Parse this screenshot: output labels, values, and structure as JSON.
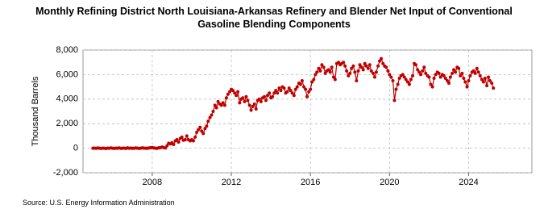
{
  "chart_data": {
    "type": "line",
    "title": "Monthly Refining District North Louisiana-Arkansas Refinery and Blender Net Input of Conventional Gasoline Blending Components",
    "y_label": "Thousand Barrels",
    "source": "Source: U.S. Energy Information Administration",
    "xlim": [
      2004.5,
      2027.2
    ],
    "xticks": [
      2008,
      2012,
      2016,
      2020,
      2024
    ],
    "ylim": [
      -2000,
      8000
    ],
    "yticks": [
      {
        "value": -2000,
        "label": "-2,000"
      },
      0,
      {
        "value": 2000,
        "label": "2,000"
      },
      {
        "value": 4000,
        "label": "4,000"
      },
      {
        "value": 6000,
        "label": "6,000"
      },
      {
        "value": 8000,
        "label": "8,000"
      }
    ],
    "grid": true,
    "x": [
      2005.0,
      2005.08,
      2005.17,
      2005.25,
      2005.33,
      2005.42,
      2005.5,
      2005.58,
      2005.67,
      2005.75,
      2005.83,
      2005.92,
      2006.0,
      2006.08,
      2006.17,
      2006.25,
      2006.33,
      2006.42,
      2006.5,
      2006.58,
      2006.67,
      2006.75,
      2006.83,
      2006.92,
      2007.0,
      2007.08,
      2007.17,
      2007.25,
      2007.33,
      2007.42,
      2007.5,
      2007.58,
      2007.67,
      2007.75,
      2007.83,
      2007.92,
      2008.0,
      2008.08,
      2008.17,
      2008.25,
      2008.33,
      2008.42,
      2008.5,
      2008.58,
      2008.67,
      2008.75,
      2008.83,
      2008.92,
      2009.0,
      2009.08,
      2009.17,
      2009.25,
      2009.33,
      2009.42,
      2009.5,
      2009.58,
      2009.67,
      2009.75,
      2009.83,
      2009.92,
      2010.0,
      2010.08,
      2010.17,
      2010.25,
      2010.33,
      2010.42,
      2010.5,
      2010.58,
      2010.67,
      2010.75,
      2010.83,
      2010.92,
      2011.0,
      2011.08,
      2011.17,
      2011.25,
      2011.33,
      2011.42,
      2011.5,
      2011.58,
      2011.67,
      2011.75,
      2011.83,
      2011.92,
      2012.0,
      2012.08,
      2012.17,
      2012.25,
      2012.33,
      2012.42,
      2012.5,
      2012.58,
      2012.67,
      2012.75,
      2012.83,
      2012.92,
      2013.0,
      2013.08,
      2013.17,
      2013.25,
      2013.33,
      2013.42,
      2013.5,
      2013.58,
      2013.67,
      2013.75,
      2013.83,
      2013.92,
      2014.0,
      2014.08,
      2014.17,
      2014.25,
      2014.33,
      2014.42,
      2014.5,
      2014.58,
      2014.67,
      2014.75,
      2014.83,
      2014.92,
      2015.0,
      2015.08,
      2015.17,
      2015.25,
      2015.33,
      2015.42,
      2015.5,
      2015.58,
      2015.67,
      2015.75,
      2015.83,
      2015.92,
      2016.0,
      2016.08,
      2016.17,
      2016.25,
      2016.33,
      2016.42,
      2016.5,
      2016.58,
      2016.67,
      2016.75,
      2016.83,
      2016.92,
      2017.0,
      2017.08,
      2017.17,
      2017.25,
      2017.33,
      2017.42,
      2017.5,
      2017.58,
      2017.67,
      2017.75,
      2017.83,
      2017.92,
      2018.0,
      2018.08,
      2018.17,
      2018.25,
      2018.33,
      2018.42,
      2018.5,
      2018.58,
      2018.67,
      2018.75,
      2018.83,
      2018.92,
      2019.0,
      2019.08,
      2019.17,
      2019.25,
      2019.33,
      2019.42,
      2019.5,
      2019.58,
      2019.67,
      2019.75,
      2019.83,
      2019.92,
      2020.0,
      2020.08,
      2020.17,
      2020.25,
      2020.33,
      2020.42,
      2020.5,
      2020.58,
      2020.67,
      2020.75,
      2020.83,
      2020.92,
      2021.0,
      2021.08,
      2021.17,
      2021.25,
      2021.33,
      2021.42,
      2021.5,
      2021.58,
      2021.67,
      2021.75,
      2021.83,
      2021.92,
      2022.0,
      2022.08,
      2022.17,
      2022.25,
      2022.33,
      2022.42,
      2022.5,
      2022.58,
      2022.67,
      2022.75,
      2022.83,
      2022.92,
      2023.0,
      2023.08,
      2023.17,
      2023.25,
      2023.33,
      2023.42,
      2023.5,
      2023.58,
      2023.67,
      2023.75,
      2023.83,
      2023.92,
      2024.0,
      2024.08,
      2024.17,
      2024.25,
      2024.33,
      2024.42,
      2024.5,
      2024.58,
      2024.67,
      2024.75,
      2024.83,
      2024.92,
      2025.0,
      2025.08,
      2025.17,
      2025.25
    ],
    "series": [
      {
        "color": "#c00000",
        "values": [
          0,
          10,
          -10,
          20,
          0,
          -20,
          10,
          0,
          -30,
          10,
          0,
          20,
          0,
          -20,
          10,
          0,
          20,
          -10,
          0,
          10,
          -20,
          30,
          0,
          10,
          -10,
          0,
          20,
          10,
          -20,
          0,
          30,
          10,
          0,
          -10,
          20,
          40,
          60,
          20,
          0,
          -10,
          30,
          50,
          100,
          50,
          20,
          200,
          400,
          350,
          450,
          300,
          600,
          700,
          500,
          800,
          900,
          650,
          700,
          1000,
          700,
          600,
          700,
          600,
          900,
          1300,
          1500,
          1700,
          1400,
          1200,
          1600,
          1800,
          2200,
          2500,
          2700,
          3000,
          3500,
          3300,
          3800,
          3600,
          3500,
          3700,
          3500,
          4100,
          4400,
          4600,
          4800,
          4700,
          4500,
          4300,
          4600,
          3700,
          4000,
          4100,
          3800,
          4200,
          3900,
          3500,
          3100,
          3400,
          3600,
          3200,
          3900,
          4000,
          3800,
          4100,
          4200,
          3900,
          4300,
          4500,
          4100,
          4200,
          4500,
          4700,
          4500,
          4900,
          4700,
          5000,
          4900,
          4500,
          4600,
          4900,
          4700,
          4500,
          4300,
          4800,
          5000,
          5300,
          5200,
          5500,
          5000,
          4800,
          4200,
          4600,
          4800,
          5400,
          5600,
          6000,
          6200,
          6500,
          6300,
          6800,
          6600,
          6100,
          6300,
          6400,
          6200,
          6600,
          5800,
          5600,
          6900,
          7000,
          6800,
          6900,
          7000,
          6700,
          6300,
          5900,
          6100,
          6500,
          6700,
          6200,
          5500,
          6300,
          6800,
          6600,
          6400,
          6900,
          6700,
          6500,
          6800,
          6300,
          6100,
          5800,
          6200,
          6700,
          7100,
          7300,
          6900,
          6700,
          6600,
          6300,
          6000,
          5800,
          5500,
          3900,
          4800,
          5200,
          5700,
          5900,
          6000,
          5800,
          5600,
          5400,
          5200,
          5600,
          5900,
          6900,
          6800,
          6400,
          6200,
          6000,
          6300,
          6600,
          6100,
          5900,
          5800,
          5200,
          5000,
          5700,
          6000,
          6200,
          6100,
          5800,
          6000,
          5900,
          5700,
          5500,
          5300,
          5800,
          6100,
          6400,
          6200,
          6600,
          6500,
          5900,
          6100,
          5700,
          5400,
          5000,
          5500,
          5900,
          6200,
          6300,
          6100,
          6500,
          6200,
          5900,
          5600,
          5400,
          5700,
          5100,
          5800,
          5500,
          5300,
          4900
        ]
      }
    ]
  }
}
